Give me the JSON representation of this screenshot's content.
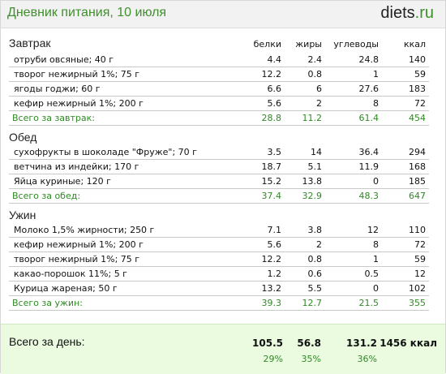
{
  "header": {
    "title": "Дневник питания, 10 июля",
    "logo_part1": "diets",
    "logo_part2": ".ru"
  },
  "columns": {
    "protein": "белки",
    "fat": "жиры",
    "carbs": "углеводы",
    "kcal": "ккал"
  },
  "breakfast": {
    "title": "Завтрак",
    "items": [
      {
        "name": "отруби овсяные; 40 г",
        "protein": "4.4",
        "fat": "2.4",
        "carbs": "24.8",
        "kcal": "140"
      },
      {
        "name": "творог нежирный 1%; 75 г",
        "protein": "12.2",
        "fat": "0.8",
        "carbs": "1",
        "kcal": "59"
      },
      {
        "name": "ягоды годжи; 60 г",
        "protein": "6.6",
        "fat": "6",
        "carbs": "27.6",
        "kcal": "183"
      },
      {
        "name": "кефир нежирный 1%; 200 г",
        "protein": "5.6",
        "fat": "2",
        "carbs": "8",
        "kcal": "72"
      }
    ],
    "total": {
      "name": "Всего за завтрак:",
      "protein": "28.8",
      "fat": "11.2",
      "carbs": "61.4",
      "kcal": "454"
    }
  },
  "lunch": {
    "title": "Обед",
    "items": [
      {
        "name": "сухофрукты в шоколаде \"Фруже\"; 70 г",
        "protein": "3.5",
        "fat": "14",
        "carbs": "36.4",
        "kcal": "294"
      },
      {
        "name": "ветчина из индейки; 170 г",
        "protein": "18.7",
        "fat": "5.1",
        "carbs": "11.9",
        "kcal": "168"
      },
      {
        "name": "Яйца куриные; 120 г",
        "protein": "15.2",
        "fat": "13.8",
        "carbs": "0",
        "kcal": "185"
      }
    ],
    "total": {
      "name": "Всего за обед:",
      "protein": "37.4",
      "fat": "32.9",
      "carbs": "48.3",
      "kcal": "647"
    }
  },
  "dinner": {
    "title": "Ужин",
    "items": [
      {
        "name": "Молоко 1,5% жирности; 250 г",
        "protein": "7.1",
        "fat": "3.8",
        "carbs": "12",
        "kcal": "110"
      },
      {
        "name": "кефир нежирный 1%; 200 г",
        "protein": "5.6",
        "fat": "2",
        "carbs": "8",
        "kcal": "72"
      },
      {
        "name": "творог нежирный 1%; 75 г",
        "protein": "12.2",
        "fat": "0.8",
        "carbs": "1",
        "kcal": "59"
      },
      {
        "name": "какао-порошок 11%; 5 г",
        "protein": "1.2",
        "fat": "0.6",
        "carbs": "0.5",
        "kcal": "12"
      },
      {
        "name": "Курица жареная; 50 г",
        "protein": "13.2",
        "fat": "5.5",
        "carbs": "0",
        "kcal": "102"
      }
    ],
    "total": {
      "name": "Всего за ужин:",
      "protein": "39.3",
      "fat": "12.7",
      "carbs": "21.5",
      "kcal": "355"
    }
  },
  "day_total": {
    "label": "Всего за день:",
    "protein": "105.5",
    "fat": "56.8",
    "carbs": "131.2",
    "kcal": "1456 ккал",
    "protein_pct": "29%",
    "fat_pct": "35%",
    "carbs_pct": "36%"
  },
  "colors": {
    "accent_green": "#3f8f2c",
    "total_green": "#2f8a24",
    "day_bg": "#eafbe0"
  }
}
